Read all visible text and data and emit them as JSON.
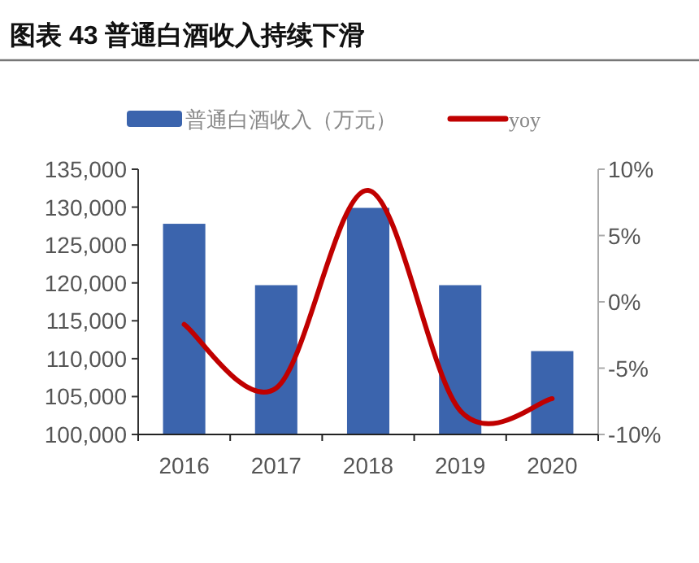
{
  "chart_data": {
    "type": "bar",
    "title": "图表 43 普通白酒收入持续下滑",
    "categories": [
      "2016",
      "2017",
      "2018",
      "2019",
      "2020"
    ],
    "series": [
      {
        "name": "普通白酒收入（万元）",
        "color": "#3b64ad",
        "values": [
          127800,
          119700,
          129900,
          119700,
          111000
        ]
      },
      {
        "name": "yoy",
        "type": "line",
        "axis": "y2",
        "color": "#c00000",
        "values": [
          -1.7,
          -6.5,
          8.4,
          -8.2,
          -7.3
        ]
      }
    ],
    "ylim": [
      100000,
      135000
    ],
    "yticks": [
      {
        "value": 100000,
        "label": "100,000"
      },
      {
        "value": 105000,
        "label": "105,000"
      },
      {
        "value": 110000,
        "label": "110,000"
      },
      {
        "value": 115000,
        "label": "115,000"
      },
      {
        "value": 120000,
        "label": "120,000"
      },
      {
        "value": 125000,
        "label": "125,000"
      },
      {
        "value": 130000,
        "label": "130,000"
      },
      {
        "value": 135000,
        "label": "135,000"
      }
    ],
    "y2lim": [
      -10,
      10
    ],
    "y2ticks": [
      {
        "value": -10,
        "label": "-10%"
      },
      {
        "value": -5,
        "label": "-5%"
      },
      {
        "value": 0,
        "label": "0%"
      },
      {
        "value": 5,
        "label": "5%"
      },
      {
        "value": 10,
        "label": "10%"
      }
    ],
    "legend": "top",
    "grid": false
  }
}
